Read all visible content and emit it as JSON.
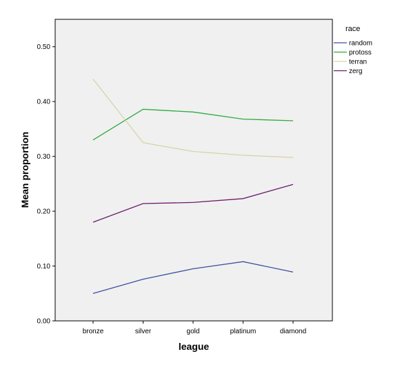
{
  "chart_data": {
    "type": "line",
    "xlabel": "league",
    "ylabel": "Mean proportion",
    "categories": [
      "bronze",
      "silver",
      "gold",
      "platinum",
      "diamond"
    ],
    "ylim": [
      0.0,
      0.55
    ],
    "yticks": [
      0.0,
      0.1,
      0.2,
      0.3,
      0.4,
      0.5
    ],
    "ytick_labels": [
      "0.00",
      "0.10",
      "0.20",
      "0.30",
      "0.40",
      "0.50"
    ],
    "grid": false,
    "legend": {
      "title": "race",
      "placement": "right"
    },
    "series": [
      {
        "name": "random",
        "color": "#3a4ea0",
        "values": [
          0.05,
          0.076,
          0.095,
          0.108,
          0.089
        ]
      },
      {
        "name": "protoss",
        "color": "#2eaa3c",
        "values": [
          0.33,
          0.386,
          0.381,
          0.368,
          0.365
        ]
      },
      {
        "name": "terran",
        "color": "#d6d3a8",
        "values": [
          0.441,
          0.325,
          0.309,
          0.302,
          0.298
        ]
      },
      {
        "name": "zerg",
        "color": "#6a1a6a",
        "values": [
          0.18,
          0.214,
          0.216,
          0.223,
          0.249
        ]
      }
    ]
  }
}
